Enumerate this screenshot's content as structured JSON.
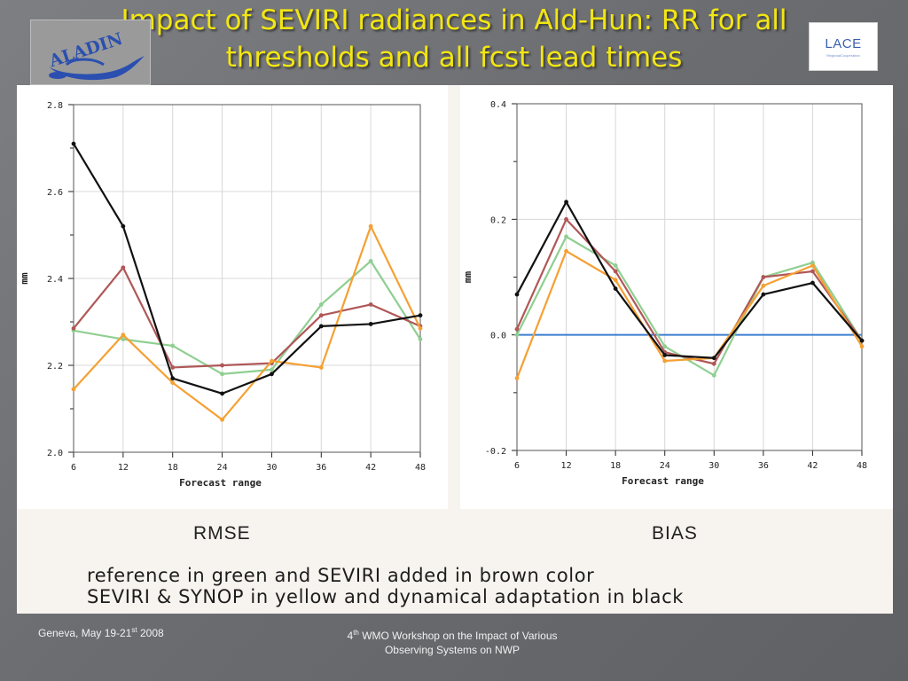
{
  "slide": {
    "title_line1": "Impact of SEVIRI radiances in Ald-Hun: RR for all",
    "title_line2": "thresholds and all fcst lead times",
    "logo_left_text": "ALADIN",
    "logo_right_text": "LACE",
    "logo_right_sub": "RegionalCooperation",
    "rmse_label": "RMSE",
    "bias_label": "BIAS",
    "caption_line1": "reference in green and SEVIRI added in brown color",
    "caption_line2": "SEVIRI & SYNOP in yellow and dynamical adaptation in black",
    "footer_left_pre": "Geneva, May 19-21",
    "footer_left_sup": "st",
    "footer_left_post": "  2008",
    "footer_center_num": "4",
    "footer_center_sup": "th",
    "footer_center_line1": " WMO Workshop on the Impact of Various",
    "footer_center_line2": "Observing Systems on NWP",
    "title_color": "#f2e612"
  },
  "chart_data": [
    {
      "type": "line",
      "title": "",
      "xlabel": "Forecast range",
      "ylabel": "mm",
      "x": [
        6,
        12,
        18,
        24,
        30,
        36,
        42,
        48
      ],
      "xlim": [
        6,
        48
      ],
      "ylim": [
        2.0,
        2.8
      ],
      "y_ticks": [
        2.0,
        2.2,
        2.4,
        2.6,
        2.8
      ],
      "y_tick_labels": [
        "2.0",
        "2.2",
        "2.4",
        "2.6",
        "2.8"
      ],
      "grid": true,
      "series": [
        {
          "color": "#8fcf91",
          "values": [
            2.28,
            2.26,
            2.245,
            2.18,
            2.19,
            2.34,
            2.44,
            2.26
          ]
        },
        {
          "color": "#b05757",
          "values": [
            2.285,
            2.425,
            2.195,
            2.2,
            2.205,
            2.315,
            2.34,
            2.29
          ]
        },
        {
          "color": "#f5a033",
          "values": [
            2.145,
            2.27,
            2.16,
            2.075,
            2.21,
            2.195,
            2.52,
            2.285
          ]
        },
        {
          "color": "#111111",
          "values": [
            2.71,
            2.52,
            2.17,
            2.135,
            2.18,
            2.29,
            2.295,
            2.315
          ]
        }
      ]
    },
    {
      "type": "line",
      "title": "",
      "xlabel": "Forecast range",
      "ylabel": "mm",
      "x": [
        6,
        12,
        18,
        24,
        30,
        36,
        42,
        48
      ],
      "xlim": [
        6,
        48
      ],
      "ylim": [
        -0.2,
        0.4
      ],
      "y_ticks": [
        -0.2,
        0.0,
        0.2,
        0.4
      ],
      "y_tick_labels": [
        "-0.2",
        "0.0",
        "0.2",
        "0.4"
      ],
      "grid": true,
      "zero_line_color": "#3b7fd0",
      "series": [
        {
          "color": "#8fcf91",
          "values": [
            0.0,
            0.17,
            0.12,
            -0.02,
            -0.07,
            0.1,
            0.125,
            -0.01
          ]
        },
        {
          "color": "#b05757",
          "values": [
            0.01,
            0.2,
            0.11,
            -0.03,
            -0.05,
            0.1,
            0.11,
            -0.01
          ]
        },
        {
          "color": "#f5a033",
          "values": [
            -0.075,
            0.145,
            0.095,
            -0.045,
            -0.04,
            0.085,
            0.12,
            -0.02
          ]
        },
        {
          "color": "#111111",
          "values": [
            0.07,
            0.23,
            0.08,
            -0.035,
            -0.04,
            0.07,
            0.09,
            -0.01
          ]
        }
      ]
    }
  ]
}
